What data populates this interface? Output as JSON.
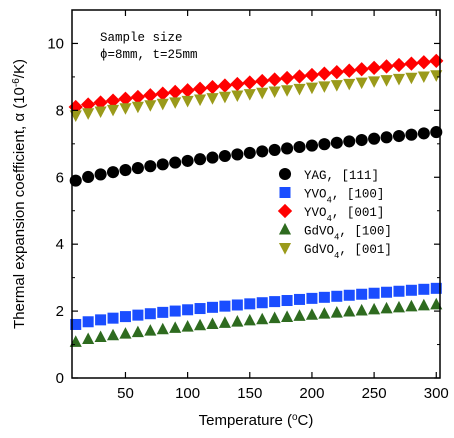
{
  "chart_data": {
    "type": "scatter",
    "xlabel_text": "Temperature (",
    "xlabel_sup": "o",
    "xlabel_tail": "C)",
    "ylabel_text": "Thermal expansion coefficient, α (10",
    "ylabel_sup": "-6",
    "ylabel_tail": "/K)",
    "xlim": [
      7,
      303
    ],
    "ylim": [
      0,
      11
    ],
    "xticks": [
      50,
      100,
      150,
      200,
      250,
      300
    ],
    "yticks": [
      0,
      2,
      4,
      6,
      8,
      10
    ],
    "annotation": {
      "line1": "Sample size",
      "line2": "ϕ=8mm, t=25mm"
    },
    "legend_position": "center-right",
    "series": [
      {
        "name": "YAG,  [111]",
        "name_main": "YAG,",
        "name_sub": "",
        "name_tail": "  [111]",
        "marker": "circle",
        "color": "#000000",
        "y_start": 5.9,
        "y_end": 7.35,
        "curve": 1.3
      },
      {
        "name": "YVO4,  [100]",
        "name_main": "YVO",
        "name_sub": "4",
        "name_tail": ",  [100]",
        "marker": "square",
        "color": "#1a4dff",
        "y_start": 1.6,
        "y_end": 2.68,
        "curve": 1.3
      },
      {
        "name": "YVO4,  [001]",
        "name_main": "YVO",
        "name_sub": "4",
        "name_tail": ",  [001]",
        "marker": "diamond",
        "color": "#ff0000",
        "y_start": 8.1,
        "y_end": 9.48,
        "curve": 1.15
      },
      {
        "name": "GdVO4,  [100]",
        "name_main": "GdVO",
        "name_sub": "4",
        "name_tail": ",  [100]",
        "marker": "triangle-up",
        "color": "#2e6b1f",
        "y_start": 1.08,
        "y_end": 2.2,
        "curve": 1.3
      },
      {
        "name": "GdVO4,  [001]",
        "name_main": "GdVO",
        "name_sub": "4",
        "name_tail": ",  [001]",
        "marker": "triangle-down",
        "color": "#9a9a1a",
        "y_start": 7.85,
        "y_end": 9.05,
        "curve": 1.15
      }
    ],
    "x_start": 10,
    "x_end": 300,
    "n_points": 30
  }
}
